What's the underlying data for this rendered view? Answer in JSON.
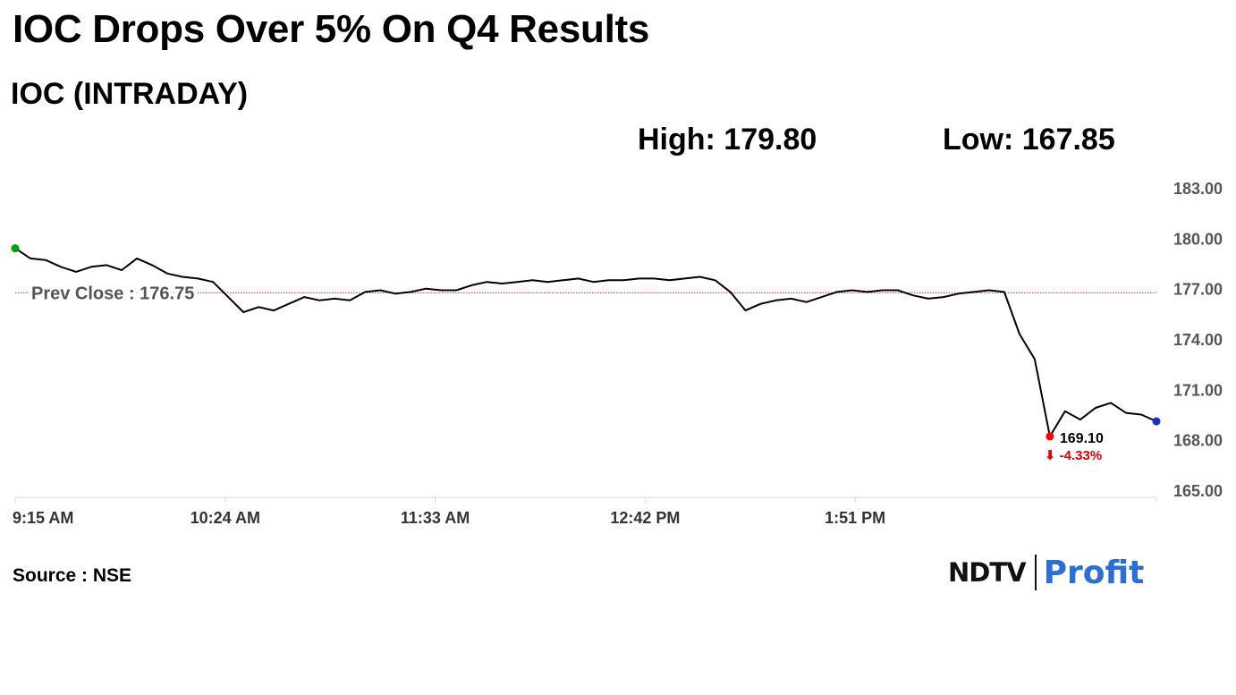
{
  "headline": "IOC Drops Over 5% On Q4 Results",
  "stats": {
    "high": "High: 179.80",
    "low": "Low: 167.85"
  },
  "source": "Source : NSE",
  "logo": {
    "text_ndtv": "NDTV",
    "text_profit": "Profit"
  },
  "colors": {
    "line": "#000000",
    "prev_close_line": "#c0392b",
    "start_marker": "#00a000",
    "end_marker": "#1a2fcc",
    "low_marker": "#ff0000",
    "change_text": "#e00000",
    "axis_text": "#555555",
    "axis_line": "#d9d9d9"
  },
  "chart_data": {
    "type": "line",
    "title": "IOC (INTRADAY)",
    "series": [
      {
        "x": [
          "09:15",
          "09:20",
          "09:25",
          "09:30",
          "09:35",
          "09:40",
          "09:45",
          "09:50",
          "09:55",
          "10:00",
          "10:05",
          "10:10",
          "10:15",
          "10:20",
          "10:25",
          "10:30",
          "10:35",
          "10:40",
          "10:45",
          "10:50",
          "10:55",
          "11:00",
          "11:05",
          "11:10",
          "11:15",
          "11:20",
          "11:25",
          "11:30",
          "11:35",
          "11:40",
          "11:45",
          "11:50",
          "11:55",
          "12:00",
          "12:05",
          "12:10",
          "12:15",
          "12:20",
          "12:25",
          "12:30",
          "12:35",
          "12:40",
          "12:45",
          "12:50",
          "12:55",
          "13:00",
          "13:05",
          "13:10",
          "13:15",
          "13:20",
          "13:25",
          "13:30",
          "13:35",
          "13:40",
          "13:45",
          "13:50",
          "13:55",
          "14:00",
          "14:05",
          "14:10",
          "14:15",
          "14:20",
          "14:25",
          "14:30",
          "14:35",
          "14:40",
          "14:45",
          "14:50",
          "14:55",
          "15:00",
          "15:05",
          "15:10",
          "15:15",
          "15:20",
          "15:25",
          "15:30"
        ],
        "values": [
          179.4,
          178.8,
          178.7,
          178.3,
          178.0,
          178.3,
          178.4,
          178.1,
          178.8,
          178.4,
          177.9,
          177.7,
          177.6,
          177.4,
          176.5,
          175.6,
          175.9,
          175.7,
          176.1,
          176.5,
          176.3,
          176.4,
          176.3,
          176.8,
          176.9,
          176.7,
          176.8,
          177.0,
          176.9,
          176.9,
          177.2,
          177.4,
          177.3,
          177.4,
          177.5,
          177.4,
          177.5,
          177.6,
          177.4,
          177.5,
          177.5,
          177.6,
          177.6,
          177.5,
          177.6,
          177.7,
          177.5,
          176.8,
          175.7,
          176.1,
          176.3,
          176.4,
          176.2,
          176.5,
          176.8,
          176.9,
          176.8,
          176.9,
          176.9,
          176.6,
          176.4,
          176.5,
          176.7,
          176.8,
          176.9,
          176.8,
          174.3,
          172.8,
          168.2,
          169.7,
          169.2,
          169.9,
          170.2,
          169.6,
          169.5,
          169.1
        ]
      }
    ],
    "x_ticks": [
      "9:15 AM",
      "10:24 AM",
      "11:33 AM",
      "12:42 PM",
      "1:51 PM"
    ],
    "y_ticks": [
      "183.00",
      "180.00",
      "177.00",
      "174.00",
      "171.00",
      "168.00",
      "165.00"
    ],
    "ylim": [
      165,
      183
    ],
    "prev_close": 176.75,
    "prev_close_label": "Prev Close : 176.75",
    "last_value_label": "169.10",
    "change_label": "⬇ -4.33%",
    "grid": false
  }
}
